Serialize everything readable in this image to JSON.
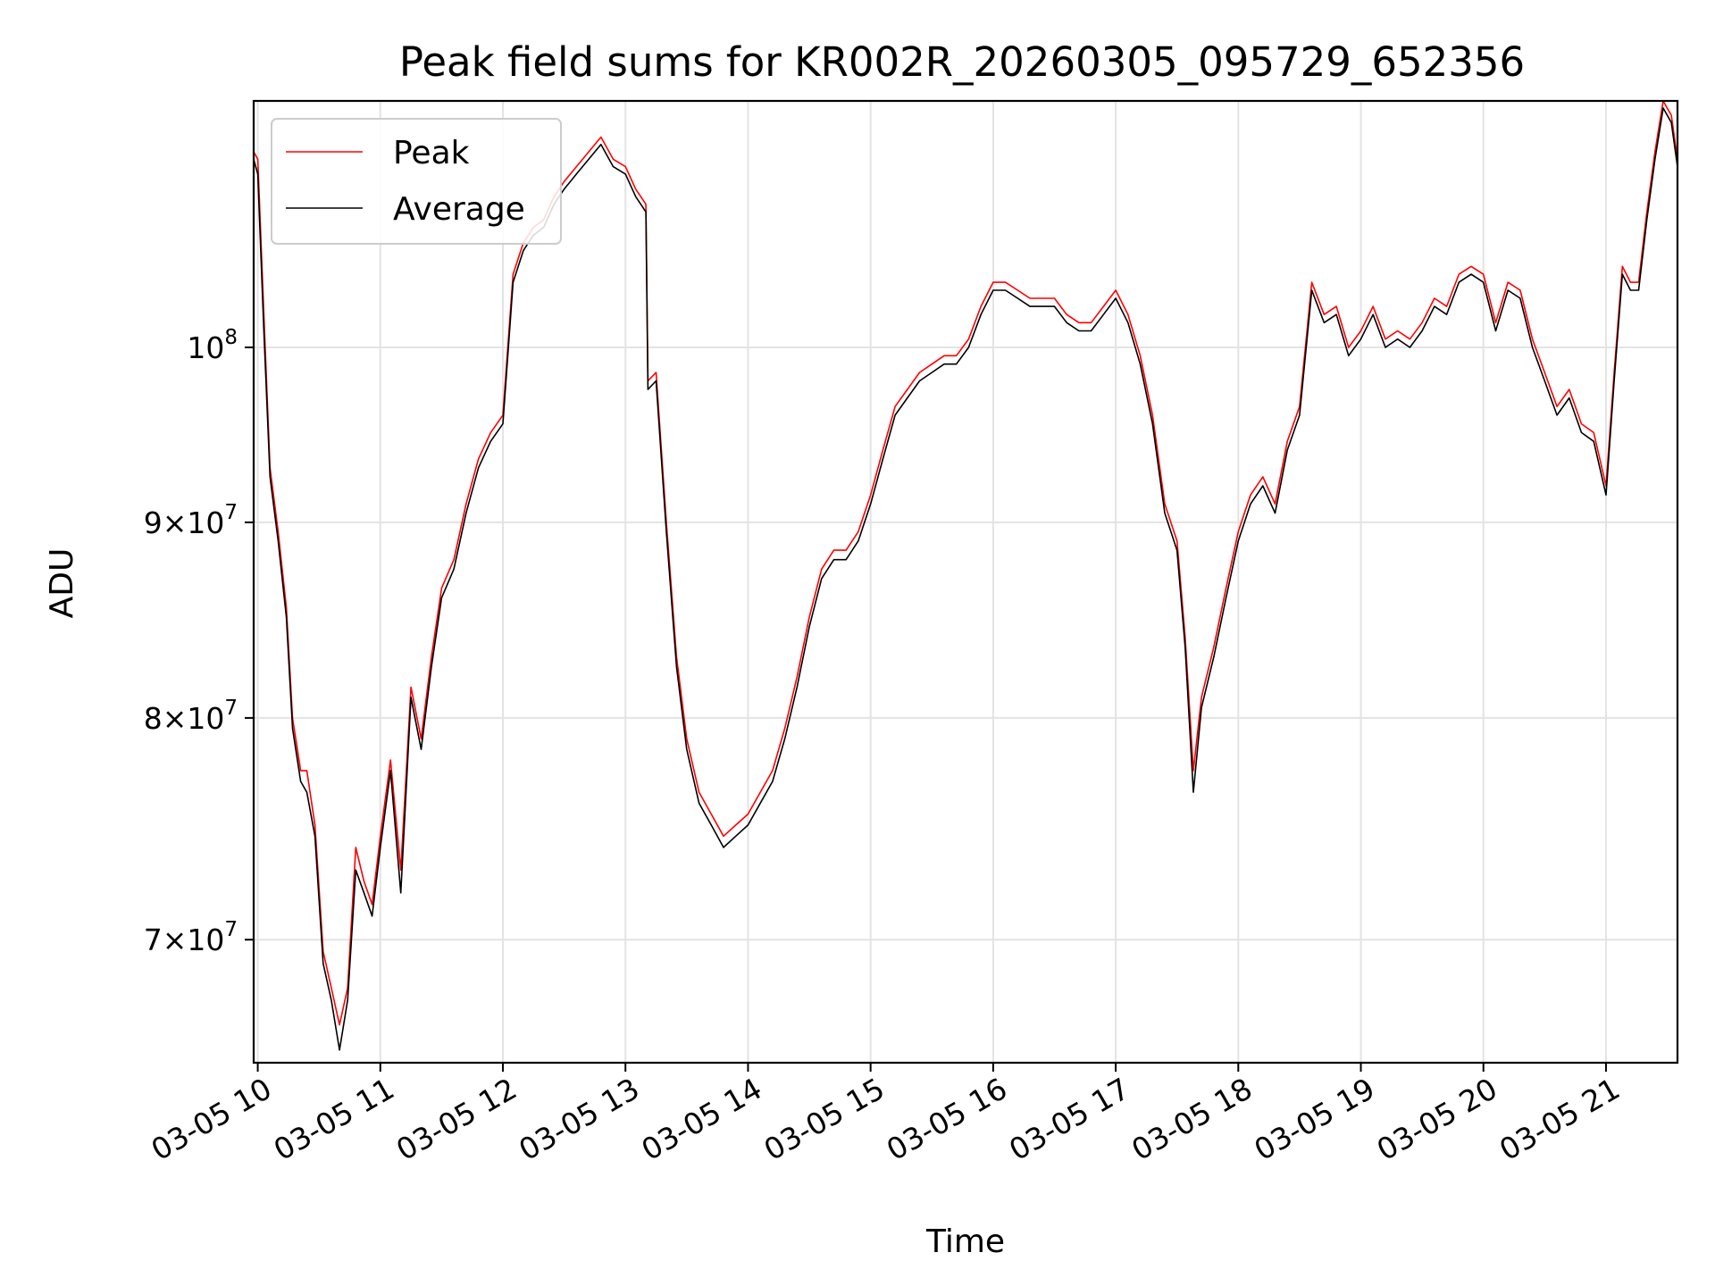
{
  "chart_data": {
    "type": "line",
    "title": "Peak field sums for KR002R_20260305_095729_652356",
    "xlabel": "Time",
    "ylabel": "ADU",
    "y_scale": "log",
    "xlim": [
      "03-05 09:58",
      "03-05 21:35"
    ],
    "ylim": [
      65000000,
      116000000
    ],
    "grid": true,
    "legend_position": "upper-left",
    "x_ticks": [
      "03-05 10",
      "03-05 11",
      "03-05 12",
      "03-05 13",
      "03-05 14",
      "03-05 15",
      "03-05 16",
      "03-05 17",
      "03-05 18",
      "03-05 19",
      "03-05 20",
      "03-05 21"
    ],
    "x_tick_times": [
      "03-05 10:00",
      "03-05 11:00",
      "03-05 12:00",
      "03-05 13:00",
      "03-05 14:00",
      "03-05 15:00",
      "03-05 16:00",
      "03-05 17:00",
      "03-05 18:00",
      "03-05 19:00",
      "03-05 20:00",
      "03-05 21:00"
    ],
    "y_ticks": [
      {
        "value": 70000000,
        "mantissa": "7",
        "exponent": "7"
      },
      {
        "value": 80000000,
        "mantissa": "8",
        "exponent": "7"
      },
      {
        "value": 90000000,
        "mantissa": "9",
        "exponent": "7"
      },
      {
        "value": 100000000,
        "mantissa": "",
        "exponent": "8"
      }
    ],
    "series": [
      {
        "name": "Peak",
        "color": "#ff0000",
        "x": [
          "03-05 09:58",
          "03-05 10:00",
          "03-05 10:03",
          "03-05 10:06",
          "03-05 10:10",
          "03-05 10:14",
          "03-05 10:17",
          "03-05 10:21",
          "03-05 10:24",
          "03-05 10:28",
          "03-05 10:32",
          "03-05 10:36",
          "03-05 10:40",
          "03-05 10:44",
          "03-05 10:48",
          "03-05 10:52",
          "03-05 10:56",
          "03-05 11:00",
          "03-05 11:05",
          "03-05 11:10",
          "03-05 11:15",
          "03-05 11:20",
          "03-05 11:25",
          "03-05 11:30",
          "03-05 11:36",
          "03-05 11:42",
          "03-05 11:48",
          "03-05 11:54",
          "03-05 12:00",
          "03-05 12:05",
          "03-05 12:10",
          "03-05 12:15",
          "03-05 12:20",
          "03-05 12:25",
          "03-05 12:30",
          "03-05 12:36",
          "03-05 12:42",
          "03-05 12:48",
          "03-05 12:54",
          "03-05 13:00",
          "03-05 13:05",
          "03-05 13:10",
          "03-05 13:11",
          "03-05 13:15",
          "03-05 13:20",
          "03-05 13:25",
          "03-05 13:30",
          "03-05 13:36",
          "03-05 13:42",
          "03-05 13:48",
          "03-05 13:54",
          "03-05 14:00",
          "03-05 14:06",
          "03-05 14:12",
          "03-05 14:18",
          "03-05 14:24",
          "03-05 14:30",
          "03-05 14:36",
          "03-05 14:42",
          "03-05 14:48",
          "03-05 14:54",
          "03-05 15:00",
          "03-05 15:06",
          "03-05 15:12",
          "03-05 15:18",
          "03-05 15:24",
          "03-05 15:30",
          "03-05 15:36",
          "03-05 15:42",
          "03-05 15:48",
          "03-05 15:54",
          "03-05 16:00",
          "03-05 16:06",
          "03-05 16:12",
          "03-05 16:18",
          "03-05 16:24",
          "03-05 16:30",
          "03-05 16:36",
          "03-05 16:42",
          "03-05 16:48",
          "03-05 16:54",
          "03-05 17:00",
          "03-05 17:06",
          "03-05 17:12",
          "03-05 17:18",
          "03-05 17:24",
          "03-05 17:30",
          "03-05 17:34",
          "03-05 17:38",
          "03-05 17:42",
          "03-05 17:48",
          "03-05 17:54",
          "03-05 18:00",
          "03-05 18:06",
          "03-05 18:12",
          "03-05 18:18",
          "03-05 18:24",
          "03-05 18:30",
          "03-05 18:36",
          "03-05 18:42",
          "03-05 18:48",
          "03-05 18:54",
          "03-05 19:00",
          "03-05 19:06",
          "03-05 19:12",
          "03-05 19:18",
          "03-05 19:24",
          "03-05 19:30",
          "03-05 19:36",
          "03-05 19:42",
          "03-05 19:48",
          "03-05 19:54",
          "03-05 20:00",
          "03-05 20:06",
          "03-05 20:12",
          "03-05 20:18",
          "03-05 20:24",
          "03-05 20:30",
          "03-05 20:36",
          "03-05 20:42",
          "03-05 20:48",
          "03-05 20:54",
          "03-05 21:00",
          "03-05 21:04",
          "03-05 21:08",
          "03-05 21:12",
          "03-05 21:16",
          "03-05 21:20",
          "03-05 21:24",
          "03-05 21:28",
          "03-05 21:32",
          "03-05 21:35"
        ],
        "values": [
          112500000,
          112000000,
          102000000,
          93000000,
          89500000,
          85500000,
          80000000,
          77500000,
          77500000,
          75000000,
          69500000,
          68000000,
          66500000,
          68000000,
          74000000,
          72500000,
          71500000,
          74500000,
          78000000,
          73000000,
          81500000,
          79000000,
          83000000,
          86500000,
          88000000,
          91000000,
          93500000,
          95000000,
          96000000,
          104500000,
          106500000,
          107500000,
          108000000,
          109500000,
          110500000,
          111500000,
          112500000,
          113500000,
          112000000,
          111500000,
          110000000,
          109000000,
          98000000,
          98500000,
          90000000,
          83000000,
          79000000,
          76500000,
          75500000,
          74500000,
          75000000,
          75500000,
          76500000,
          77500000,
          79500000,
          82000000,
          85000000,
          87500000,
          88500000,
          88500000,
          89500000,
          91500000,
          94000000,
          96500000,
          97500000,
          98500000,
          99000000,
          99500000,
          99500000,
          100500000,
          102500000,
          104000000,
          104000000,
          103500000,
          103000000,
          103000000,
          103000000,
          102000000,
          101500000,
          101500000,
          102500000,
          103500000,
          102000000,
          99500000,
          96000000,
          91000000,
          89000000,
          84000000,
          77500000,
          81000000,
          83500000,
          86500000,
          89500000,
          91500000,
          92500000,
          91000000,
          94500000,
          96500000,
          104000000,
          102000000,
          102500000,
          100000000,
          101000000,
          102500000,
          100500000,
          101000000,
          100500000,
          101500000,
          103000000,
          102500000,
          104500000,
          105000000,
          104500000,
          101500000,
          104000000,
          103500000,
          100500000,
          98500000,
          96500000,
          97500000,
          95500000,
          95000000,
          92000000,
          98500000,
          105000000,
          104000000,
          104000000,
          108500000,
          112500000,
          116000000,
          115000000,
          112000000
        ]
      },
      {
        "name": "Average",
        "color": "#000000",
        "x": [
          "03-05 09:58",
          "03-05 10:00",
          "03-05 10:03",
          "03-05 10:06",
          "03-05 10:10",
          "03-05 10:14",
          "03-05 10:17",
          "03-05 10:21",
          "03-05 10:24",
          "03-05 10:28",
          "03-05 10:32",
          "03-05 10:36",
          "03-05 10:40",
          "03-05 10:44",
          "03-05 10:48",
          "03-05 10:52",
          "03-05 10:56",
          "03-05 11:00",
          "03-05 11:05",
          "03-05 11:10",
          "03-05 11:15",
          "03-05 11:20",
          "03-05 11:25",
          "03-05 11:30",
          "03-05 11:36",
          "03-05 11:42",
          "03-05 11:48",
          "03-05 11:54",
          "03-05 12:00",
          "03-05 12:05",
          "03-05 12:10",
          "03-05 12:15",
          "03-05 12:20",
          "03-05 12:25",
          "03-05 12:30",
          "03-05 12:36",
          "03-05 12:42",
          "03-05 12:48",
          "03-05 12:54",
          "03-05 13:00",
          "03-05 13:05",
          "03-05 13:10",
          "03-05 13:11",
          "03-05 13:15",
          "03-05 13:20",
          "03-05 13:25",
          "03-05 13:30",
          "03-05 13:36",
          "03-05 13:42",
          "03-05 13:48",
          "03-05 13:54",
          "03-05 14:00",
          "03-05 14:06",
          "03-05 14:12",
          "03-05 14:18",
          "03-05 14:24",
          "03-05 14:30",
          "03-05 14:36",
          "03-05 14:42",
          "03-05 14:48",
          "03-05 14:54",
          "03-05 15:00",
          "03-05 15:06",
          "03-05 15:12",
          "03-05 15:18",
          "03-05 15:24",
          "03-05 15:30",
          "03-05 15:36",
          "03-05 15:42",
          "03-05 15:48",
          "03-05 15:54",
          "03-05 16:00",
          "03-05 16:06",
          "03-05 16:12",
          "03-05 16:18",
          "03-05 16:24",
          "03-05 16:30",
          "03-05 16:36",
          "03-05 16:42",
          "03-05 16:48",
          "03-05 16:54",
          "03-05 17:00",
          "03-05 17:06",
          "03-05 17:12",
          "03-05 17:18",
          "03-05 17:24",
          "03-05 17:30",
          "03-05 17:34",
          "03-05 17:38",
          "03-05 17:42",
          "03-05 17:48",
          "03-05 17:54",
          "03-05 18:00",
          "03-05 18:06",
          "03-05 18:12",
          "03-05 18:18",
          "03-05 18:24",
          "03-05 18:30",
          "03-05 18:36",
          "03-05 18:42",
          "03-05 18:48",
          "03-05 18:54",
          "03-05 19:00",
          "03-05 19:06",
          "03-05 19:12",
          "03-05 19:18",
          "03-05 19:24",
          "03-05 19:30",
          "03-05 19:36",
          "03-05 19:42",
          "03-05 19:48",
          "03-05 19:54",
          "03-05 20:00",
          "03-05 20:06",
          "03-05 20:12",
          "03-05 20:18",
          "03-05 20:24",
          "03-05 20:30",
          "03-05 20:36",
          "03-05 20:42",
          "03-05 20:48",
          "03-05 20:54",
          "03-05 21:00",
          "03-05 21:04",
          "03-05 21:08",
          "03-05 21:12",
          "03-05 21:16",
          "03-05 21:20",
          "03-05 21:24",
          "03-05 21:28",
          "03-05 21:32",
          "03-05 21:35"
        ],
        "values": [
          112000000,
          111000000,
          101000000,
          92500000,
          89000000,
          85000000,
          79500000,
          77000000,
          76500000,
          74500000,
          69000000,
          67500000,
          65500000,
          67500000,
          73000000,
          72000000,
          71000000,
          74000000,
          77500000,
          72000000,
          81000000,
          78500000,
          82500000,
          86000000,
          87500000,
          90500000,
          93000000,
          94500000,
          95500000,
          104000000,
          106000000,
          107000000,
          107500000,
          109000000,
          110000000,
          111000000,
          112000000,
          113000000,
          111500000,
          111000000,
          109500000,
          108500000,
          97500000,
          98000000,
          89500000,
          82500000,
          78500000,
          76000000,
          75000000,
          74000000,
          74500000,
          75000000,
          76000000,
          77000000,
          79000000,
          81500000,
          84500000,
          87000000,
          88000000,
          88000000,
          89000000,
          91000000,
          93500000,
          96000000,
          97000000,
          98000000,
          98500000,
          99000000,
          99000000,
          100000000,
          102000000,
          103500000,
          103500000,
          103000000,
          102500000,
          102500000,
          102500000,
          101500000,
          101000000,
          101000000,
          102000000,
          103000000,
          101500000,
          99000000,
          95500000,
          90500000,
          88500000,
          83500000,
          76500000,
          80500000,
          83000000,
          86000000,
          89000000,
          91000000,
          92000000,
          90500000,
          94000000,
          96000000,
          103500000,
          101500000,
          102000000,
          99500000,
          100500000,
          102000000,
          100000000,
          100500000,
          100000000,
          101000000,
          102500000,
          102000000,
          104000000,
          104500000,
          104000000,
          101000000,
          103500000,
          103000000,
          100000000,
          98000000,
          96000000,
          97000000,
          95000000,
          94500000,
          91500000,
          98000000,
          104500000,
          103500000,
          103500000,
          108000000,
          112000000,
          115500000,
          114500000,
          111500000
        ]
      }
    ]
  }
}
